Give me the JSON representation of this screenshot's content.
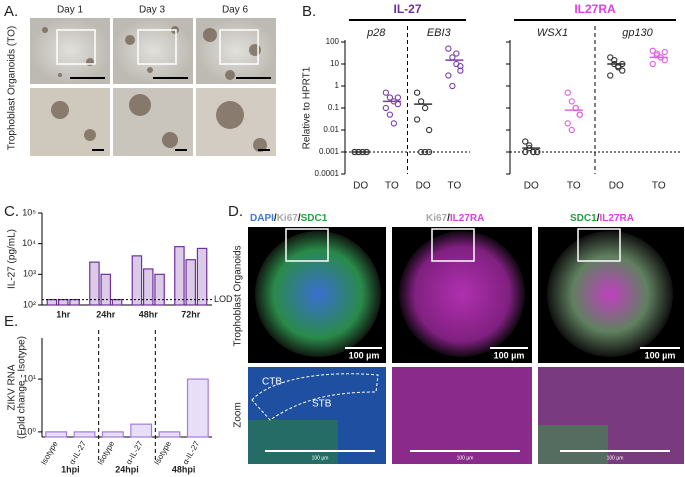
{
  "panel_labels": {
    "A": "A.",
    "B": "B.",
    "C": "C.",
    "D": "D.",
    "E": "E."
  },
  "panel_a": {
    "days": [
      "Day 1",
      "Day 3",
      "Day 6"
    ],
    "row_label": "Trophoblast Organoids (TO)"
  },
  "panel_d": {
    "headers": [
      [
        "DAPI",
        "/",
        "Ki67",
        "/",
        "SDC1"
      ],
      [
        "Ki67",
        "/",
        "IL27RA"
      ],
      [
        "SDC1",
        "/",
        "IL27RA"
      ]
    ],
    "row_labels": [
      "Trophoblast Organoids",
      "Zoom"
    ],
    "scale_bars": [
      "100 µm",
      "100 µm",
      "100 µm"
    ],
    "zoom_scale_bars": [
      "100 µm",
      "100 µm",
      "100 µm"
    ],
    "regions": [
      "CTB",
      "STB"
    ]
  },
  "chart_data": [
    {
      "type": "dot",
      "title": "IL-27",
      "title_color": "#7030a0",
      "y_label": "Relative to HPRT1",
      "log_scale": true,
      "groups": [
        "p28",
        "EBI3"
      ],
      "categories": [
        "DO",
        "TO",
        "DO",
        "TO"
      ],
      "points": [
        [
          0.001,
          0.001,
          0.001,
          0.001,
          0.001,
          0.001,
          0.001,
          0.001
        ],
        [
          0.5,
          0.3,
          0.2,
          0.15,
          0.1,
          0.05,
          0.02,
          0.3
        ],
        [
          0.5,
          0.2,
          0.1,
          0.01,
          0.03,
          0.001,
          0.001,
          0.001
        ],
        [
          50,
          20,
          10,
          5,
          3,
          1,
          30,
          8
        ]
      ],
      "means": [
        0.001,
        0.2,
        0.15,
        15
      ],
      "colors": [
        "#333333",
        "#7b3fb0",
        "#333333",
        "#7b3fb0"
      ],
      "ylim": [
        0.0001,
        100
      ],
      "yticks": [
        100,
        10,
        1,
        0.1,
        0.01,
        0.001,
        0.0001
      ],
      "tick_labels": true,
      "reference_line": 0.001
    },
    {
      "type": "dot",
      "title": "IL27RA",
      "title_color": "#e040e0",
      "log_scale": true,
      "groups": [
        "WSX1",
        "gp130"
      ],
      "categories": [
        "DO",
        "TO",
        "DO",
        "TO"
      ],
      "points": [
        [
          0.003,
          0.002,
          0.001,
          0.001,
          0.001,
          0.0015,
          0.001,
          0.001
        ],
        [
          0.5,
          0.2,
          0.1,
          0.05,
          0.02,
          0.01,
          0.1,
          0.05
        ],
        [
          20,
          10,
          8,
          5,
          3,
          15,
          7,
          10
        ],
        [
          40,
          30,
          20,
          15,
          10,
          25,
          20,
          35
        ]
      ],
      "means": [
        0.0015,
        0.08,
        10,
        20
      ],
      "colors": [
        "#333333",
        "#e060e0",
        "#333333",
        "#e060e0"
      ],
      "ylim": [
        0.0001,
        100
      ],
      "yticks": [
        100,
        10,
        1,
        0.1,
        0.01,
        0.001,
        0.0001
      ],
      "tick_labels": false,
      "reference_line": 0.001
    },
    {
      "type": "bar",
      "y_label": [
        "IL-27 (pg/mL)"
      ],
      "log_scale": true,
      "categories": [
        "1hr",
        "24hr",
        "48hr",
        "72hr"
      ],
      "series": [
        {
          "color": "#7030a0",
          "values": [
            150,
            2500,
            4000,
            8000
          ]
        },
        {
          "color": "#7030a0",
          "values": [
            150,
            1000,
            1500,
            3000
          ]
        },
        {
          "color": "#7030a0",
          "values": [
            150,
            150,
            1000,
            7000
          ]
        }
      ],
      "ylim": [
        100,
        100000
      ],
      "yticks": [
        {
          "value": 100,
          "label": "10²"
        },
        {
          "value": 1000,
          "label": "10³"
        },
        {
          "value": 10000,
          "label": "10⁴"
        },
        {
          "value": 100000,
          "label": "10⁵"
        }
      ],
      "reference_line": {
        "value": 150,
        "label": "LOD"
      }
    },
    {
      "type": "bar",
      "y_label": [
        "ZIKV RNA",
        "(Fold change - Isotype)"
      ],
      "log_scale": true,
      "groups": [
        "1hpi",
        "24hpi",
        "48hpi"
      ],
      "categories": [
        "Isotype",
        "α-IL-27",
        "Isotype",
        "α-IL-27",
        "Isotype",
        "α-IL-27"
      ],
      "series": [
        {
          "color": "#a57be0",
          "values": [
            1,
            1,
            1,
            1.4,
            1,
            10
          ]
        }
      ],
      "ylim": [
        0.8,
        60
      ],
      "yticks": [
        {
          "value": 1,
          "label": "10⁰"
        },
        {
          "value": 10,
          "label": "10¹"
        }
      ]
    }
  ]
}
